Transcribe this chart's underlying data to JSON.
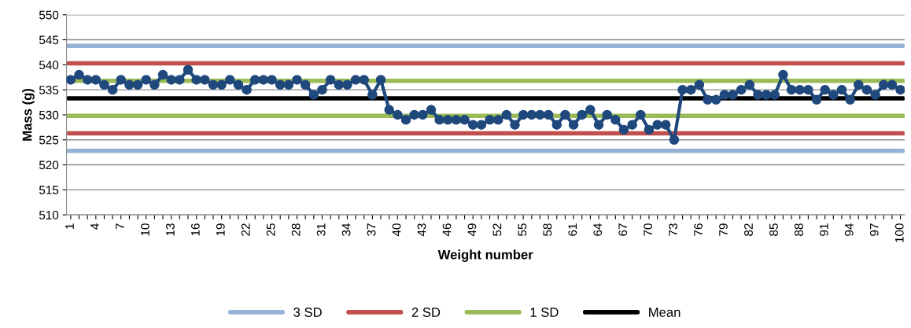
{
  "chart_data": {
    "type": "line",
    "xlabel": "Weight number",
    "ylabel": "Mass (g)",
    "categories": [
      "1",
      null,
      null,
      "4",
      null,
      null,
      "7",
      null,
      null,
      "10",
      null,
      null,
      "13",
      null,
      null,
      "16",
      null,
      null,
      "19",
      null,
      null,
      "22",
      null,
      null,
      "25",
      null,
      null,
      "28",
      null,
      null,
      "31",
      null,
      null,
      "34",
      null,
      null,
      "37",
      null,
      null,
      "40",
      null,
      null,
      "43",
      null,
      null,
      "46",
      null,
      null,
      "49",
      null,
      null,
      "52",
      null,
      null,
      "55",
      null,
      null,
      "58",
      null,
      null,
      "61",
      null,
      null,
      "64",
      null,
      null,
      "67",
      null,
      null,
      "70",
      null,
      null,
      "73",
      null,
      null,
      "76",
      null,
      null,
      "79",
      null,
      null,
      "82",
      null,
      null,
      "85",
      null,
      null,
      "88",
      null,
      null,
      "91",
      null,
      null,
      "94",
      null,
      null,
      "97",
      null,
      null,
      "100"
    ],
    "series": [
      {
        "color": "#1f497d",
        "values": [
          537,
          538,
          537,
          537,
          536,
          535,
          537,
          536,
          536,
          537,
          536,
          538,
          537,
          537,
          539,
          537,
          537,
          536,
          536,
          537,
          536,
          535,
          537,
          537,
          537,
          536,
          536,
          537,
          536,
          534,
          535,
          537,
          536,
          536,
          537,
          537,
          534,
          537,
          531,
          530,
          529,
          530,
          530,
          531,
          529,
          529,
          529,
          529,
          528,
          528,
          529,
          529,
          530,
          528,
          530,
          530,
          530,
          530,
          528,
          530,
          528,
          530,
          531,
          528,
          530,
          529,
          527,
          528,
          530,
          527,
          528,
          528,
          525,
          535,
          535,
          536,
          533,
          533,
          534,
          534,
          535,
          536,
          534,
          534,
          534,
          538,
          535,
          535,
          535,
          533,
          535,
          534,
          535,
          533,
          536,
          535,
          534,
          536,
          536,
          535
        ]
      }
    ],
    "ref_lines": [
      {
        "axis": "y",
        "value": 543.8,
        "label": "3 SD",
        "color": "#95b3d7"
      },
      {
        "axis": "y",
        "value": 522.8,
        "color": "#95b3d7"
      },
      {
        "axis": "y",
        "value": 540.3,
        "label": "2 SD",
        "color": "#c0504d"
      },
      {
        "axis": "y",
        "value": 526.3,
        "color": "#c0504d"
      },
      {
        "axis": "y",
        "value": 536.8,
        "label": "1 SD",
        "color": "#9bbb59"
      },
      {
        "axis": "y",
        "value": 529.8,
        "color": "#9bbb59"
      },
      {
        "axis": "y",
        "value": 533.3,
        "label": "Mean",
        "color": "#000000"
      }
    ],
    "ylim": [
      510,
      550
    ],
    "yticks": [
      510,
      515,
      520,
      525,
      530,
      535,
      540,
      545,
      550
    ],
    "grid": "y",
    "legend": "bottom",
    "marker": "circle",
    "line_style": "solid"
  }
}
